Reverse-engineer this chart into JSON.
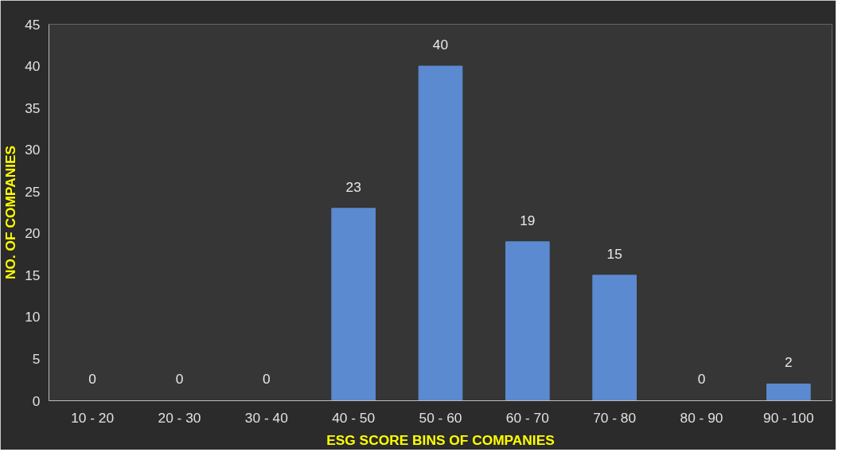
{
  "chart_data": {
    "type": "bar",
    "xlabel": "ESG SCORE BINS OF COMPANIES",
    "ylabel": "NO. OF COMPANIES",
    "categories": [
      "10 - 20",
      "20 - 30",
      "30 - 40",
      "40 - 50",
      "50 - 60",
      "60 - 70",
      "70 - 80",
      "80 - 90",
      "90 - 100"
    ],
    "values": [
      0,
      0,
      0,
      23,
      40,
      19,
      15,
      0,
      2
    ],
    "color": "#5b8ad0",
    "ylim": [
      0,
      45
    ],
    "yticks": [
      0,
      5,
      10,
      15,
      20,
      25,
      30,
      35,
      40,
      45
    ],
    "grid": false,
    "data_labels": true
  }
}
